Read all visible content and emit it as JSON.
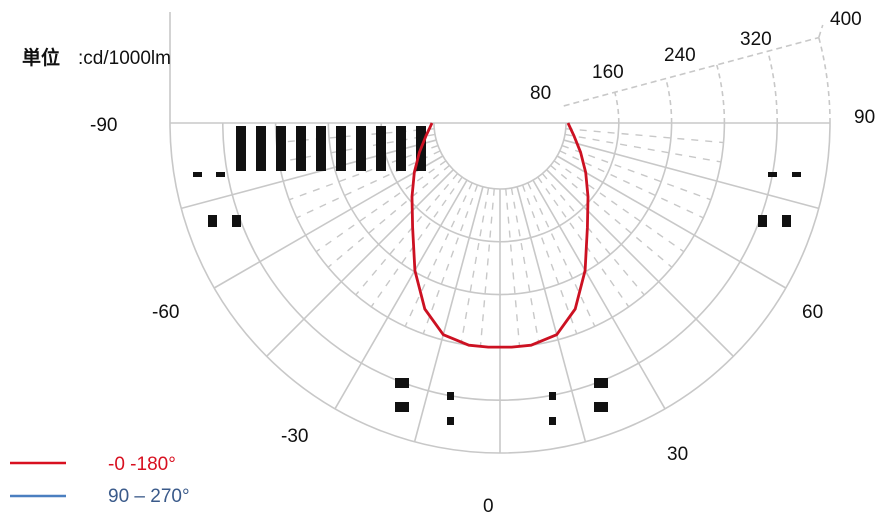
{
  "unit_label": {
    "prefix": "単位",
    "text": ":cd/1000lm"
  },
  "chart_data": {
    "type": "polar",
    "title": "",
    "unit": "cd/1000lm",
    "r_ticks": [
      80,
      160,
      240,
      320,
      400
    ],
    "r_max": 400,
    "angle_ticks": [
      {
        "angle": -90,
        "label": "-90"
      },
      {
        "angle": -60,
        "label": "-60"
      },
      {
        "angle": -30,
        "label": "-30"
      },
      {
        "angle": 0,
        "label": "0"
      },
      {
        "angle": 30,
        "label": "30"
      },
      {
        "angle": 60,
        "label": "60"
      },
      {
        "angle": 90,
        "label": "90"
      }
    ],
    "grid": true,
    "legend_position": "bottom-left",
    "series": [
      {
        "name": "-0  -180°",
        "color": "#cc1122",
        "points": [
          {
            "angle": -90,
            "r": 3
          },
          {
            "angle": -80,
            "r": 14
          },
          {
            "angle": -70,
            "r": 30
          },
          {
            "angle": -60,
            "r": 50
          },
          {
            "angle": -50,
            "r": 74
          },
          {
            "angle": -40,
            "r": 106
          },
          {
            "angle": -30,
            "r": 158
          },
          {
            "angle": -22,
            "r": 204
          },
          {
            "angle": -15,
            "r": 232
          },
          {
            "angle": -8,
            "r": 240
          },
          {
            "angle": -3,
            "r": 240
          },
          {
            "angle": 3,
            "r": 240
          },
          {
            "angle": 8,
            "r": 240
          },
          {
            "angle": 15,
            "r": 232
          },
          {
            "angle": 22,
            "r": 204
          },
          {
            "angle": 30,
            "r": 158
          },
          {
            "angle": 40,
            "r": 106
          },
          {
            "angle": 50,
            "r": 74
          },
          {
            "angle": 60,
            "r": 50
          },
          {
            "angle": 70,
            "r": 30
          },
          {
            "angle": 80,
            "r": 14
          },
          {
            "angle": 90,
            "r": 3
          }
        ]
      },
      {
        "name": "90 – 270°",
        "color": "#4a7fc0",
        "points": []
      }
    ]
  }
}
